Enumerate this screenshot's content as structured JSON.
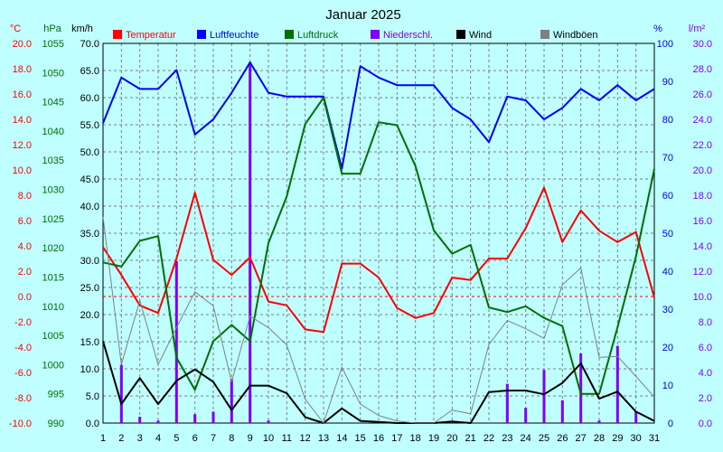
{
  "chart_data": {
    "type": "line",
    "title": "Januar 2025",
    "x": [
      1,
      2,
      3,
      4,
      5,
      6,
      7,
      8,
      9,
      10,
      11,
      12,
      13,
      14,
      15,
      16,
      17,
      18,
      19,
      20,
      21,
      22,
      23,
      24,
      25,
      26,
      27,
      28,
      29,
      30,
      31
    ],
    "axes": {
      "temp": {
        "unit": "°C",
        "min": -10,
        "max": 20,
        "step": 2
      },
      "press": {
        "unit": "hPa",
        "min": 990,
        "max": 1055,
        "step": 5
      },
      "wind": {
        "unit": "km/h",
        "min": 0,
        "max": 70,
        "step": 5
      },
      "hum": {
        "unit": "%",
        "min": 0,
        "max": 100,
        "step": 10
      },
      "rain": {
        "unit": "l/m²",
        "min": 0,
        "max": 30,
        "step": 2
      }
    },
    "reference_line": {
      "axis": "temp",
      "value": 0
    },
    "grid": true,
    "legend_position": "top",
    "colors": {
      "background": "#bfffff",
      "temp": "#ff0000",
      "hum": "#0000ff",
      "press": "#007000",
      "rain": "#8000ff",
      "wind": "#000000",
      "gust": "#808080"
    },
    "series": [
      {
        "name": "Temperatur",
        "axis": "temp",
        "color": "#ff0000",
        "values": [
          3.9,
          1.7,
          -0.7,
          -1.3,
          3.0,
          8.2,
          2.9,
          1.7,
          3.1,
          -0.4,
          -0.7,
          -2.6,
          -2.8,
          2.6,
          2.6,
          1.5,
          -0.9,
          -1.7,
          -1.3,
          1.5,
          1.3,
          3.0,
          3.0,
          5.4,
          8.6,
          4.3,
          6.8,
          5.2,
          4.3,
          5.1,
          -0.1
        ]
      },
      {
        "name": "Luftfeuchte",
        "axis": "hum",
        "color": "#0000ff",
        "values": [
          79,
          91,
          88,
          88,
          93,
          76,
          80,
          87,
          95,
          87,
          86,
          86,
          86,
          67,
          94,
          91,
          89,
          89,
          89,
          83,
          80,
          74,
          86,
          85,
          80,
          83,
          88,
          85,
          89,
          85,
          88
        ]
      },
      {
        "name": "Luftdruck",
        "axis": "press",
        "color": "#007000",
        "values": [
          1017.5,
          1016.8,
          1021.2,
          1022.0,
          1001.2,
          995.7,
          1004.0,
          1006.8,
          1004.0,
          1020.8,
          1028.8,
          1041.2,
          1045.7,
          1032.7,
          1032.7,
          1041.5,
          1041.0,
          1034.0,
          1023.0,
          1019.0,
          1020.5,
          1009.8,
          1009.0,
          1010.0,
          1008.0,
          1006.6,
          995.0,
          995.0,
          1006.4,
          1018.5,
          1033.5
        ]
      },
      {
        "name": "Niederschl.",
        "axis": "rain",
        "color": "#8000ff",
        "type": "bar",
        "values": [
          0,
          4.6,
          0.5,
          0.2,
          12.8,
          0.7,
          0.9,
          3.5,
          28.5,
          0.2,
          0,
          0,
          0,
          0,
          0,
          0,
          0,
          0,
          0,
          0,
          0,
          0,
          3.1,
          1.2,
          4.2,
          1.8,
          5.5,
          0.2,
          6.1,
          0.9,
          0
        ]
      },
      {
        "name": "Wind",
        "axis": "wind",
        "color": "#000000",
        "values": [
          15.1,
          3.5,
          8.3,
          3.5,
          7.8,
          9.9,
          7.6,
          2.4,
          6.9,
          6.9,
          5.5,
          1.1,
          0,
          2.7,
          0.4,
          0.2,
          0,
          0,
          0,
          0.3,
          0,
          5.7,
          6.0,
          6.0,
          5.3,
          7.4,
          11.0,
          4.5,
          5.8,
          2.1,
          0.4
        ]
      },
      {
        "name": "Windböen",
        "axis": "wind",
        "color": "#808080",
        "values": [
          38.0,
          10.8,
          22.6,
          10.8,
          17.6,
          24.2,
          21.6,
          7.6,
          19.7,
          17.6,
          14.4,
          4.4,
          0,
          10.3,
          3.5,
          1.4,
          0.4,
          0,
          0,
          2.4,
          1.7,
          14.5,
          18.9,
          17.4,
          15.6,
          25.5,
          28.6,
          12.1,
          12.3,
          8.6,
          4.8
        ]
      }
    ]
  }
}
